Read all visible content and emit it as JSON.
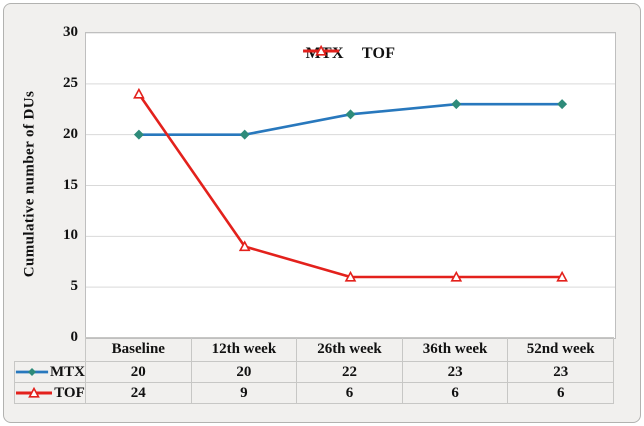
{
  "figure": {
    "background_color": "#f1f0ee",
    "plot_background_color": "#ffffff",
    "gridline_color": "#d9d9d9",
    "border_color": "#b2b2b0",
    "table_border_color": "#c7c7c5"
  },
  "chart_data": {
    "type": "line",
    "title": "",
    "xlabel": "",
    "ylabel": "Cumulative number of DUs",
    "categories": [
      "Baseline",
      "12th week",
      "26th week",
      "36th week",
      "52nd week"
    ],
    "series": [
      {
        "name": "MTX",
        "values": [
          20,
          20,
          22,
          23,
          23
        ],
        "line_color": "#2878bd",
        "marker": "diamond",
        "marker_color": "#2e8b7a"
      },
      {
        "name": "TOF",
        "values": [
          24,
          9,
          6,
          6,
          6
        ],
        "line_color": "#e3211c",
        "marker": "triangle",
        "marker_color": "#ffffff"
      }
    ],
    "ylim": [
      0,
      30
    ],
    "yticks": [
      0,
      5,
      10,
      15,
      20,
      25,
      30
    ],
    "grid": "horizontal",
    "legend_position": "top-center-inside",
    "data_table_shown": true
  }
}
